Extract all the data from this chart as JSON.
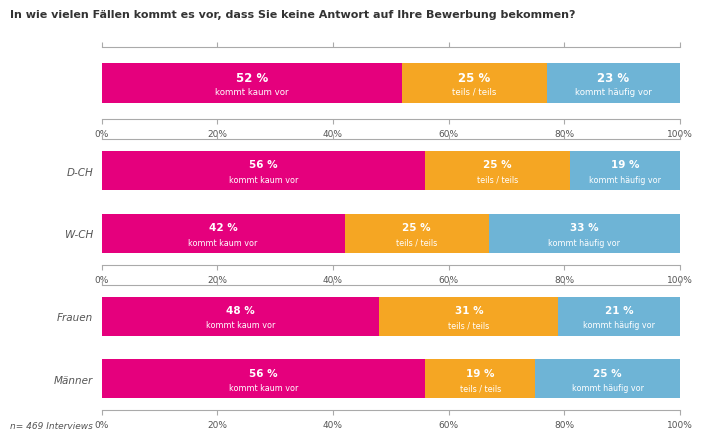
{
  "title": "In wie vielen Fällen kommt es vor, dass Sie keine Antwort auf Ihre Bewerbung bekommen?",
  "footnote": "n= 469 Interviews",
  "colors": {
    "magenta": "#E5007D",
    "orange": "#F5A623",
    "blue": "#6EB4D6",
    "text_dark": "#555555",
    "bg": "#FFFFFF"
  },
  "top_bar": {
    "values": [
      52,
      25,
      23
    ],
    "pct_labels": [
      "52 %",
      "25 %",
      "23 %"
    ],
    "sub_labels": [
      "kommt kaum vor",
      "teils / teils",
      "kommt häufig vor"
    ]
  },
  "region_bars": {
    "categories": [
      "D-CH",
      "W-CH"
    ],
    "values": [
      [
        56,
        25,
        19
      ],
      [
        42,
        25,
        33
      ]
    ],
    "pct_labels": [
      [
        "56 %",
        "25 %",
        "19 %"
      ],
      [
        "42 %",
        "25 %",
        "33 %"
      ]
    ],
    "sub_labels": [
      [
        "kommt kaum vor",
        "teils / teils",
        "kommt häufig vor"
      ],
      [
        "kommt kaum vor",
        "teils / teils",
        "kommt häufig vor"
      ]
    ]
  },
  "gender_bars": {
    "categories": [
      "Frauen",
      "Männer"
    ],
    "values": [
      [
        48,
        31,
        21
      ],
      [
        56,
        19,
        25
      ]
    ],
    "pct_labels": [
      [
        "48 %",
        "31 %",
        "21 %"
      ],
      [
        "56 %",
        "19 %",
        "25 %"
      ]
    ],
    "sub_labels": [
      [
        "kommt kaum vor",
        "teils / teils",
        "kommt häufig vor"
      ],
      [
        "kommt kaum vor",
        "teils / teils",
        "kommt häufig vor"
      ]
    ]
  },
  "xticks": [
    0,
    20,
    40,
    60,
    80,
    100
  ],
  "xtick_labels": [
    "0%",
    "20%",
    "40%",
    "60%",
    "80%",
    "100%"
  ]
}
